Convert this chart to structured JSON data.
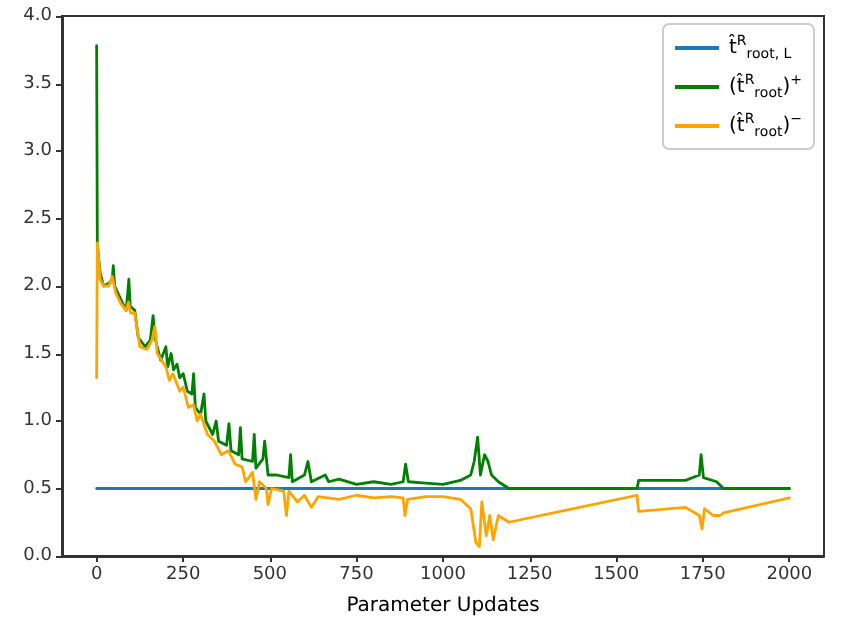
{
  "chart_data": {
    "type": "line",
    "xlabel": "Parameter Updates",
    "xlim": [
      -100,
      2100
    ],
    "xticks": [
      0,
      250,
      500,
      750,
      1000,
      1250,
      1500,
      1750,
      2000
    ],
    "ylim": [
      0,
      4
    ],
    "yticks": [
      {
        "value": 0,
        "label": "0.0"
      },
      {
        "value": 0.5,
        "label": "0.5"
      },
      {
        "value": 1,
        "label": "1.0"
      },
      {
        "value": 1.5,
        "label": "1.5"
      },
      {
        "value": 2,
        "label": "2.0"
      },
      {
        "value": 2.5,
        "label": "2.5"
      },
      {
        "value": 3,
        "label": "3.0"
      },
      {
        "value": 3.5,
        "label": "3.5"
      },
      {
        "value": 4,
        "label": "4.0"
      }
    ],
    "grid": false,
    "legend": "top right",
    "marker": "none",
    "line_style": "solid",
    "series": [
      {
        "name": "t̂$^{R}$$_{root, L}$",
        "color": "#1f77b4",
        "x": [
          0,
          2000
        ],
        "values": [
          0.5,
          0.5
        ]
      },
      {
        "name": "(t̂$^{R}$$_{root}$)$^{+}$",
        "color": "#008000",
        "x": [
          0,
          2,
          10,
          20,
          35,
          45,
          48,
          52,
          70,
          85,
          90,
          93,
          97,
          110,
          120,
          140,
          155,
          163,
          168,
          185,
          200,
          205,
          215,
          222,
          232,
          240,
          250,
          262,
          275,
          280,
          285,
          300,
          310,
          315,
          335,
          345,
          352,
          375,
          382,
          388,
          410,
          415,
          420,
          450,
          455,
          460,
          480,
          485,
          495,
          520,
          555,
          560,
          565,
          600,
          610,
          620,
          660,
          670,
          700,
          750,
          800,
          850,
          885,
          892,
          900,
          950,
          1000,
          1050,
          1080,
          1090,
          1100,
          1108,
          1120,
          1130,
          1140,
          1160,
          1190,
          1560,
          1565,
          1700,
          1740,
          1745,
          1752,
          1790,
          1810,
          2000
        ],
        "values": [
          3.78,
          2.3,
          2.1,
          2.0,
          2.02,
          2.05,
          2.15,
          2.0,
          1.9,
          1.82,
          1.95,
          2.05,
          1.85,
          1.82,
          1.62,
          1.55,
          1.6,
          1.78,
          1.62,
          1.45,
          1.55,
          1.4,
          1.5,
          1.38,
          1.42,
          1.32,
          1.35,
          1.22,
          1.2,
          1.35,
          1.1,
          1.05,
          1.2,
          1.0,
          0.9,
          1.0,
          0.85,
          0.82,
          0.98,
          0.78,
          0.75,
          0.95,
          0.72,
          0.7,
          0.9,
          0.65,
          0.72,
          0.85,
          0.6,
          0.6,
          0.58,
          0.75,
          0.55,
          0.6,
          0.7,
          0.55,
          0.6,
          0.55,
          0.57,
          0.53,
          0.55,
          0.53,
          0.55,
          0.68,
          0.55,
          0.54,
          0.53,
          0.56,
          0.6,
          0.7,
          0.88,
          0.6,
          0.75,
          0.7,
          0.6,
          0.55,
          0.5,
          0.5,
          0.56,
          0.56,
          0.6,
          0.75,
          0.58,
          0.55,
          0.5,
          0.5
        ]
      },
      {
        "name": "(t̂$^{R}$$_{root}$)$^{−}$",
        "color": "#ffa500",
        "x": [
          0,
          2,
          10,
          20,
          35,
          45,
          55,
          70,
          85,
          92,
          98,
          110,
          125,
          145,
          160,
          168,
          175,
          200,
          210,
          220,
          240,
          250,
          265,
          280,
          290,
          300,
          320,
          340,
          360,
          380,
          400,
          420,
          430,
          450,
          460,
          470,
          490,
          495,
          505,
          540,
          548,
          555,
          580,
          600,
          620,
          640,
          700,
          750,
          800,
          850,
          885,
          890,
          898,
          950,
          1000,
          1050,
          1080,
          1095,
          1105,
          1112,
          1125,
          1135,
          1145,
          1160,
          1190,
          1560,
          1565,
          1700,
          1740,
          1748,
          1755,
          1780,
          1800,
          1810,
          2000
        ],
        "values": [
          1.32,
          2.32,
          2.05,
          2.0,
          2.0,
          2.07,
          1.95,
          1.87,
          1.82,
          1.88,
          1.8,
          1.8,
          1.55,
          1.53,
          1.6,
          1.7,
          1.5,
          1.4,
          1.3,
          1.35,
          1.22,
          1.25,
          1.1,
          1.12,
          1.0,
          1.05,
          0.9,
          0.85,
          0.75,
          0.78,
          0.68,
          0.66,
          0.55,
          0.62,
          0.42,
          0.55,
          0.5,
          0.38,
          0.5,
          0.48,
          0.3,
          0.48,
          0.4,
          0.45,
          0.36,
          0.44,
          0.42,
          0.45,
          0.43,
          0.44,
          0.43,
          0.3,
          0.42,
          0.44,
          0.44,
          0.42,
          0.35,
          0.1,
          0.07,
          0.4,
          0.15,
          0.3,
          0.12,
          0.3,
          0.25,
          0.45,
          0.33,
          0.36,
          0.3,
          0.2,
          0.35,
          0.3,
          0.3,
          0.32,
          0.43
        ]
      }
    ]
  }
}
